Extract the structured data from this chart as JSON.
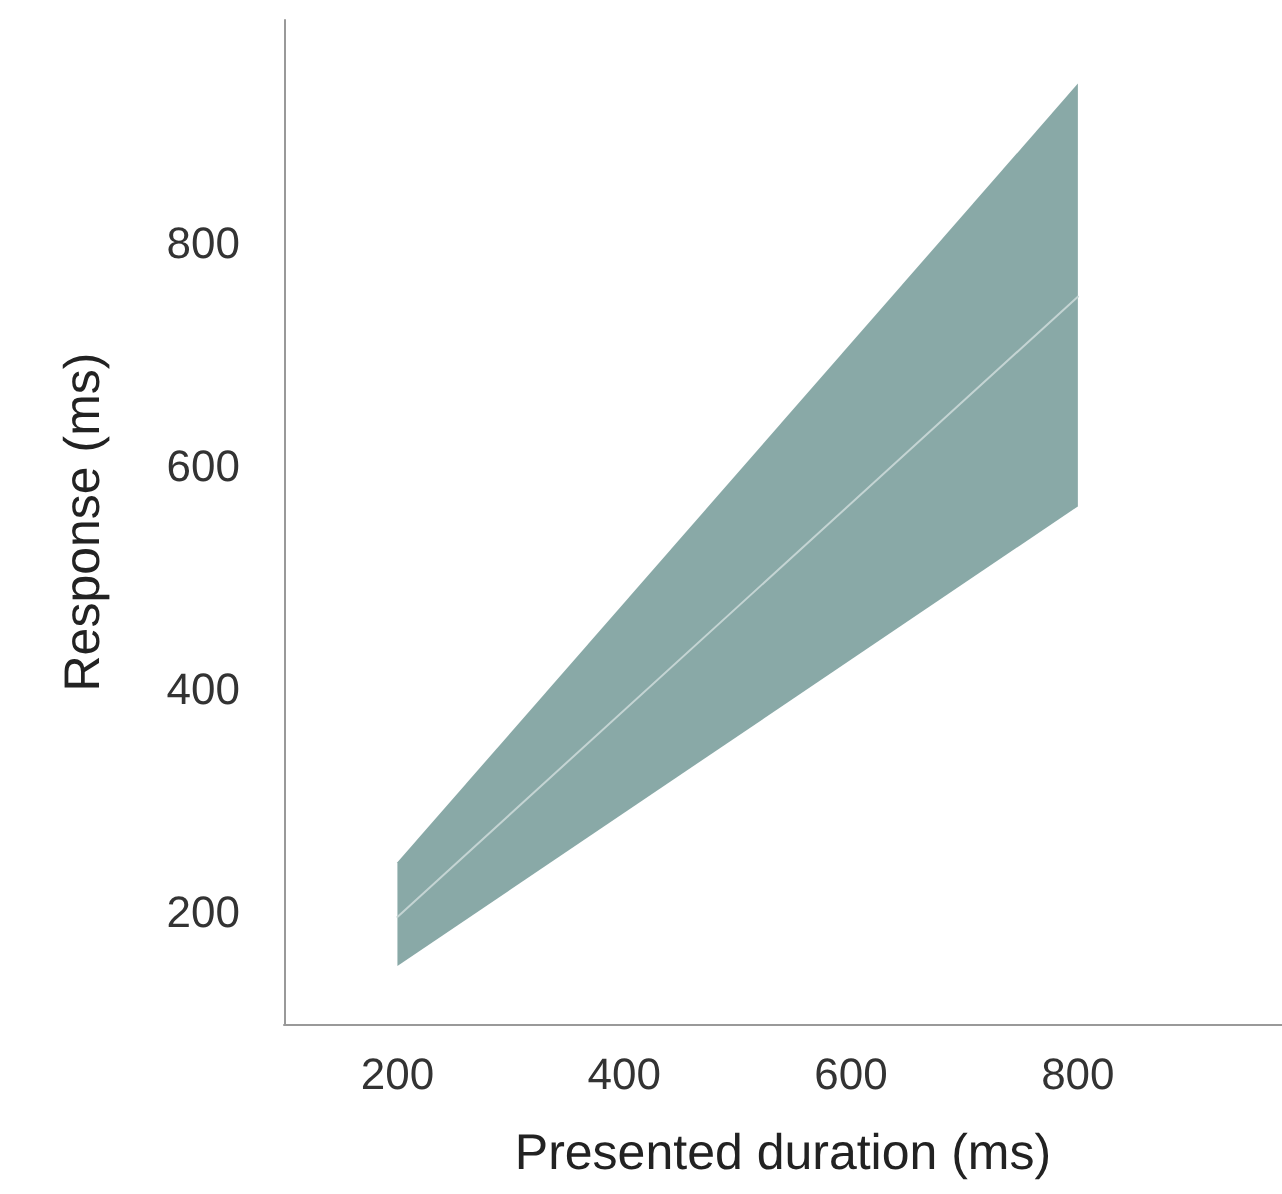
{
  "chart_data": {
    "type": "line",
    "xlabel": "Presented duration (ms)",
    "ylabel": "Response (ms)",
    "x": [
      200,
      800
    ],
    "series": [
      {
        "color": "#c4d4d3",
        "values": [
          196,
          752
        ],
        "lower": [
          152,
          564
        ],
        "upper": [
          245,
          943
        ]
      }
    ],
    "xlim": [
      100,
      980
    ],
    "ylim": [
      100,
      1000
    ],
    "xticks": [
      200,
      400,
      600,
      800
    ],
    "yticks": [
      200,
      400,
      600,
      800
    ],
    "grid": false,
    "marker": "none",
    "line_style": "solid"
  }
}
